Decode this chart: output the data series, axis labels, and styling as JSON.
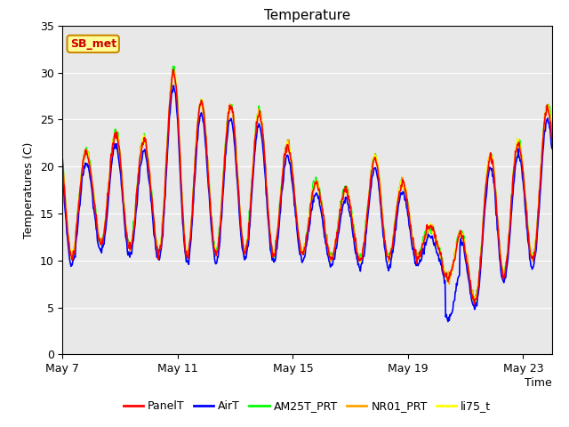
{
  "title": "Temperature",
  "ylabel": "Temperatures (C)",
  "xlabel": "Time",
  "annotation": "SB_met",
  "ylim": [
    0,
    35
  ],
  "xtick_labels": [
    "May 7",
    "May 11",
    "May 15",
    "May 19",
    "May 23"
  ],
  "xtick_positions": [
    0,
    4,
    8,
    12,
    16
  ],
  "ytick_positions": [
    0,
    5,
    10,
    15,
    20,
    25,
    30,
    35
  ],
  "series_colors": [
    "red",
    "blue",
    "lime",
    "orange",
    "yellow"
  ],
  "series_names": [
    "PanelT",
    "AirT",
    "AM25T_PRT",
    "NR01_PRT",
    "li75_t"
  ],
  "bg_color": "#e8e8e8",
  "fig_bg": "#ffffff",
  "title_fontsize": 11,
  "axis_label_fontsize": 9,
  "tick_fontsize": 9,
  "legend_fontsize": 9,
  "annotation_bg": "#ffff99",
  "annotation_border": "#cc8800",
  "annotation_text_color": "#cc0000",
  "peaks": [
    24.0,
    21.0,
    24.0,
    22.5,
    31.2,
    26.0,
    26.5,
    25.5,
    21.5,
    17.5,
    17.5,
    21.5,
    17.5,
    12.5,
    13.0,
    22.5,
    22.5,
    27.0
  ],
  "troughs": [
    9.5,
    12.0,
    11.5,
    11.0,
    10.5,
    10.5,
    11.0,
    10.5,
    11.0,
    10.5,
    10.0,
    10.0,
    10.5,
    10.0,
    4.5,
    8.0,
    9.5,
    11.5
  ],
  "n_days": 17
}
